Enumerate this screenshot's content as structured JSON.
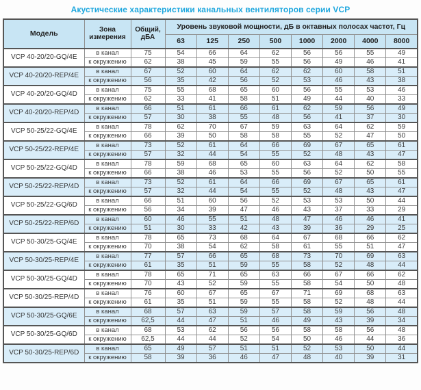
{
  "page": {
    "title": "Акустические характеристики канальных вентиляторов  серии VCP"
  },
  "colors": {
    "title_text": "#1ea7de",
    "header_bg": "#c8e5f4",
    "shaded_row_bg": "#d9edf9",
    "border_strong": "#555555",
    "border_inner": "#909090",
    "text": "#3a3a3a"
  },
  "table": {
    "headers": {
      "model": "Модель",
      "zone": "Зона измерения",
      "total": "Общий, дБА",
      "octave_title": "Уровень звуковой мощности, дБ в октавных полосах частот, Гц",
      "frequencies": [
        "63",
        "125",
        "250",
        "500",
        "1000",
        "2000",
        "4000",
        "8000"
      ]
    },
    "groups": [
      {
        "model": "VCP 40-20/20-GQ/4E",
        "shaded": false,
        "rows": [
          {
            "zone": "в канал",
            "total": "75",
            "bands": [
              54,
              66,
              64,
              62,
              56,
              56,
              55,
              49
            ]
          },
          {
            "zone": "к окружению",
            "total": "62",
            "bands": [
              38,
              45,
              59,
              55,
              56,
              49,
              46,
              41
            ]
          }
        ]
      },
      {
        "model": "VCP 40-20/20-REP/4E",
        "shaded": true,
        "rows": [
          {
            "zone": "в канал",
            "total": "67",
            "bands": [
              52,
              60,
              64,
              62,
              62,
              60,
              58,
              51
            ]
          },
          {
            "zone": "к окружению",
            "total": "56",
            "bands": [
              35,
              42,
              56,
              52,
              53,
              46,
              43,
              38
            ]
          }
        ]
      },
      {
        "model": "VCP 40-20/20-GQ/4D",
        "shaded": false,
        "rows": [
          {
            "zone": "в канал",
            "total": "75",
            "bands": [
              55,
              68,
              65,
              60,
              56,
              55,
              53,
              46
            ]
          },
          {
            "zone": "к окружению",
            "total": "62",
            "bands": [
              33,
              41,
              58,
              51,
              49,
              44,
              40,
              33
            ]
          }
        ]
      },
      {
        "model": "VCP 40-20/20-REP/4D",
        "shaded": true,
        "rows": [
          {
            "zone": "в канал",
            "total": "66",
            "bands": [
              51,
              61,
              66,
              61,
              62,
              59,
              56,
              49
            ]
          },
          {
            "zone": "к окружению",
            "total": "57",
            "bands": [
              30,
              38,
              55,
              48,
              56,
              41,
              37,
              30
            ]
          }
        ]
      },
      {
        "model": "VCP 50-25/22-GQ/4E",
        "shaded": false,
        "rows": [
          {
            "zone": "в канал",
            "total": "78",
            "bands": [
              62,
              70,
              67,
              59,
              63,
              64,
              62,
              59
            ]
          },
          {
            "zone": "к окружению",
            "total": "66",
            "bands": [
              39,
              50,
              58,
              58,
              55,
              52,
              47,
              50
            ]
          }
        ]
      },
      {
        "model": "VCP 50-25/22-REP/4E",
        "shaded": true,
        "rows": [
          {
            "zone": "в канал",
            "total": "73",
            "bands": [
              52,
              61,
              64,
              66,
              69,
              67,
              65,
              61
            ]
          },
          {
            "zone": "к окружению",
            "total": "57",
            "bands": [
              32,
              44,
              54,
              55,
              52,
              48,
              43,
              47
            ]
          }
        ]
      },
      {
        "model": "VCP 50-25/22-GQ/4D",
        "shaded": false,
        "rows": [
          {
            "zone": "в канал",
            "total": "78",
            "bands": [
              59,
              68,
              65,
              60,
              63,
              64,
              62,
              58
            ]
          },
          {
            "zone": "к окружению",
            "total": "66",
            "bands": [
              38,
              46,
              53,
              55,
              56,
              52,
              50,
              55
            ]
          }
        ]
      },
      {
        "model": "VCP 50-25/22-REP/4D",
        "shaded": true,
        "rows": [
          {
            "zone": "в канал",
            "total": "73",
            "bands": [
              52,
              61,
              64,
              66,
              69,
              67,
              65,
              61
            ]
          },
          {
            "zone": "к окружению",
            "total": "57",
            "bands": [
              32,
              44,
              54,
              55,
              52,
              48,
              43,
              47
            ]
          }
        ]
      },
      {
        "model": "VCP 50-25/22-GQ/6D",
        "shaded": false,
        "rows": [
          {
            "zone": "в канал",
            "total": "66",
            "bands": [
              51,
              60,
              56,
              52,
              53,
              53,
              50,
              44
            ]
          },
          {
            "zone": "к окружению",
            "total": "56",
            "bands": [
              34,
              39,
              47,
              46,
              43,
              37,
              33,
              29
            ]
          }
        ]
      },
      {
        "model": "VCP 50-25/22-REP/6D",
        "shaded": true,
        "rows": [
          {
            "zone": "в канал",
            "total": "60",
            "bands": [
              46,
              55,
              51,
              48,
              47,
              46,
              46,
              41
            ]
          },
          {
            "zone": "к окружению",
            "total": "51",
            "bands": [
              30,
              33,
              42,
              43,
              39,
              36,
              29,
              25
            ]
          }
        ]
      },
      {
        "model": "VCP 50-30/25-GQ/4E",
        "shaded": false,
        "rows": [
          {
            "zone": "в канал",
            "total": "78",
            "bands": [
              65,
              73,
              68,
              64,
              67,
              68,
              66,
              62
            ]
          },
          {
            "zone": "к окружению",
            "total": "70",
            "bands": [
              38,
              54,
              62,
              58,
              61,
              55,
              51,
              47
            ]
          }
        ]
      },
      {
        "model": "VCP 50-30/25-REP/4E",
        "shaded": true,
        "rows": [
          {
            "zone": "в канал",
            "total": "77",
            "bands": [
              57,
              66,
              65,
              68,
              73,
              70,
              69,
              63
            ]
          },
          {
            "zone": "к окружению",
            "total": "61",
            "bands": [
              35,
              51,
              59,
              55,
              58,
              52,
              48,
              44
            ]
          }
        ]
      },
      {
        "model": "VCP 50-30/25-GQ/4D",
        "shaded": false,
        "rows": [
          {
            "zone": "в канал",
            "total": "78",
            "bands": [
              65,
              71,
              65,
              63,
              66,
              67,
              66,
              62
            ]
          },
          {
            "zone": "к окружению",
            "total": "70",
            "bands": [
              43,
              52,
              59,
              55,
              58,
              54,
              50,
              48
            ]
          }
        ]
      },
      {
        "model": "VCP 50-30/25-REP/4D",
        "shaded": false,
        "rows": [
          {
            "zone": "в канал",
            "total": "76",
            "bands": [
              60,
              67,
              65,
              67,
              71,
              69,
              68,
              63
            ]
          },
          {
            "zone": "к окружению",
            "total": "61",
            "bands": [
              35,
              51,
              59,
              55,
              58,
              52,
              48,
              44
            ]
          }
        ]
      },
      {
        "model": "VCP 50-30/25-GQ/6E",
        "shaded": true,
        "rows": [
          {
            "zone": "в канал",
            "total": "68",
            "bands": [
              57,
              63,
              59,
              57,
              58,
              59,
              56,
              48
            ]
          },
          {
            "zone": "к окружению",
            "total": "62,5",
            "bands": [
              44,
              47,
              51,
              46,
              49,
              43,
              39,
              34
            ]
          }
        ]
      },
      {
        "model": "VCP 50-30/25-GQ/6D",
        "shaded": false,
        "rows": [
          {
            "zone": "в канал",
            "total": "68",
            "bands": [
              53,
              62,
              56,
              56,
              58,
              58,
              56,
              48
            ]
          },
          {
            "zone": "к окружению",
            "total": "62,5",
            "bands": [
              44,
              44,
              52,
              54,
              50,
              46,
              44,
              36
            ]
          }
        ]
      },
      {
        "model": "VCP 50-30/25-REP/6D",
        "shaded": true,
        "rows": [
          {
            "zone": "в канал",
            "total": "65",
            "bands": [
              49,
              57,
              51,
              51,
              52,
              53,
              50,
              44
            ]
          },
          {
            "zone": "к окружению",
            "total": "58",
            "bands": [
              39,
              36,
              46,
              47,
              48,
              40,
              39,
              31
            ]
          }
        ]
      }
    ]
  }
}
